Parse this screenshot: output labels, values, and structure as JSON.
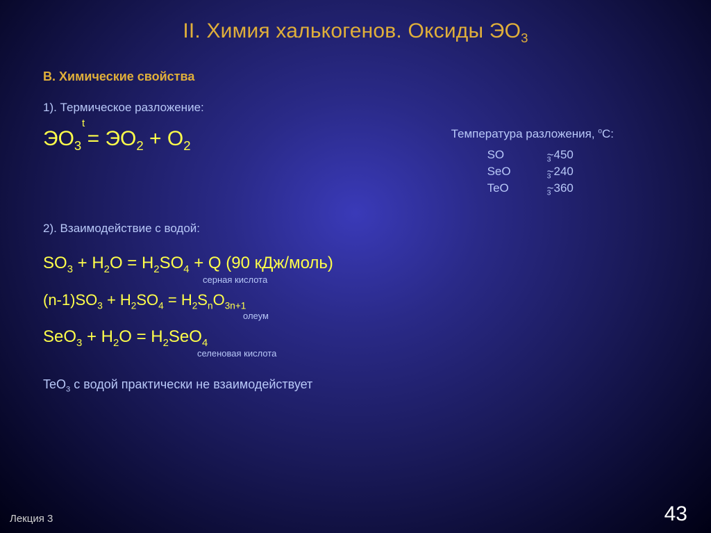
{
  "title_pre": "II. Химия халькогенов. Оксиды ЭО",
  "title_sub": "3",
  "section_b": "В. Химические свойства",
  "pt1": "1). Термическое разложение:",
  "eq1": {
    "t": "t",
    "text": "ЭО",
    "a": "3",
    "eq": " = ЭО",
    "b": "2",
    "plus": " + O",
    "c": "2"
  },
  "temp": {
    "title_pre": "Температура разложения, ",
    "deg": "о",
    "title_post": "С:",
    "rows": [
      {
        "f": "SO",
        "s": "3",
        "v": "~450"
      },
      {
        "f": "SeO",
        "s": "3",
        "v": "~240"
      },
      {
        "f": "TeO",
        "s": "3",
        "v": "~360"
      }
    ]
  },
  "pt2": "2). Взаимодействие с водой:",
  "eq2": {
    "line": "SO<sub>3</sub> + H<sub>2</sub>O = H<sub>2</sub>SO<sub>4</sub> + Q (90 кДж/моль)",
    "annot": "серная кислота"
  },
  "eq3": {
    "line": "(n-1)SO<sub>3</sub> + H<sub>2</sub>SO<sub>4</sub> = H<sub>2</sub>S<sub>n</sub>O<sub>3n+1</sub>",
    "annot": "олеум"
  },
  "eq4": {
    "line": "SeO<sub>3</sub> + H<sub>2</sub>O = H<sub>2</sub>SeO<sub>4</sub>",
    "annot": "селеновая кислота"
  },
  "note_pre": "TeO",
  "note_sub": "3",
  "note_post": " с водой практически не взаимодействует",
  "footer_l": "Лекция 3",
  "footer_r": "43",
  "colors": {
    "accent": "#e0af3a",
    "eq": "#ffff4a",
    "body": "#b8c8f8"
  }
}
